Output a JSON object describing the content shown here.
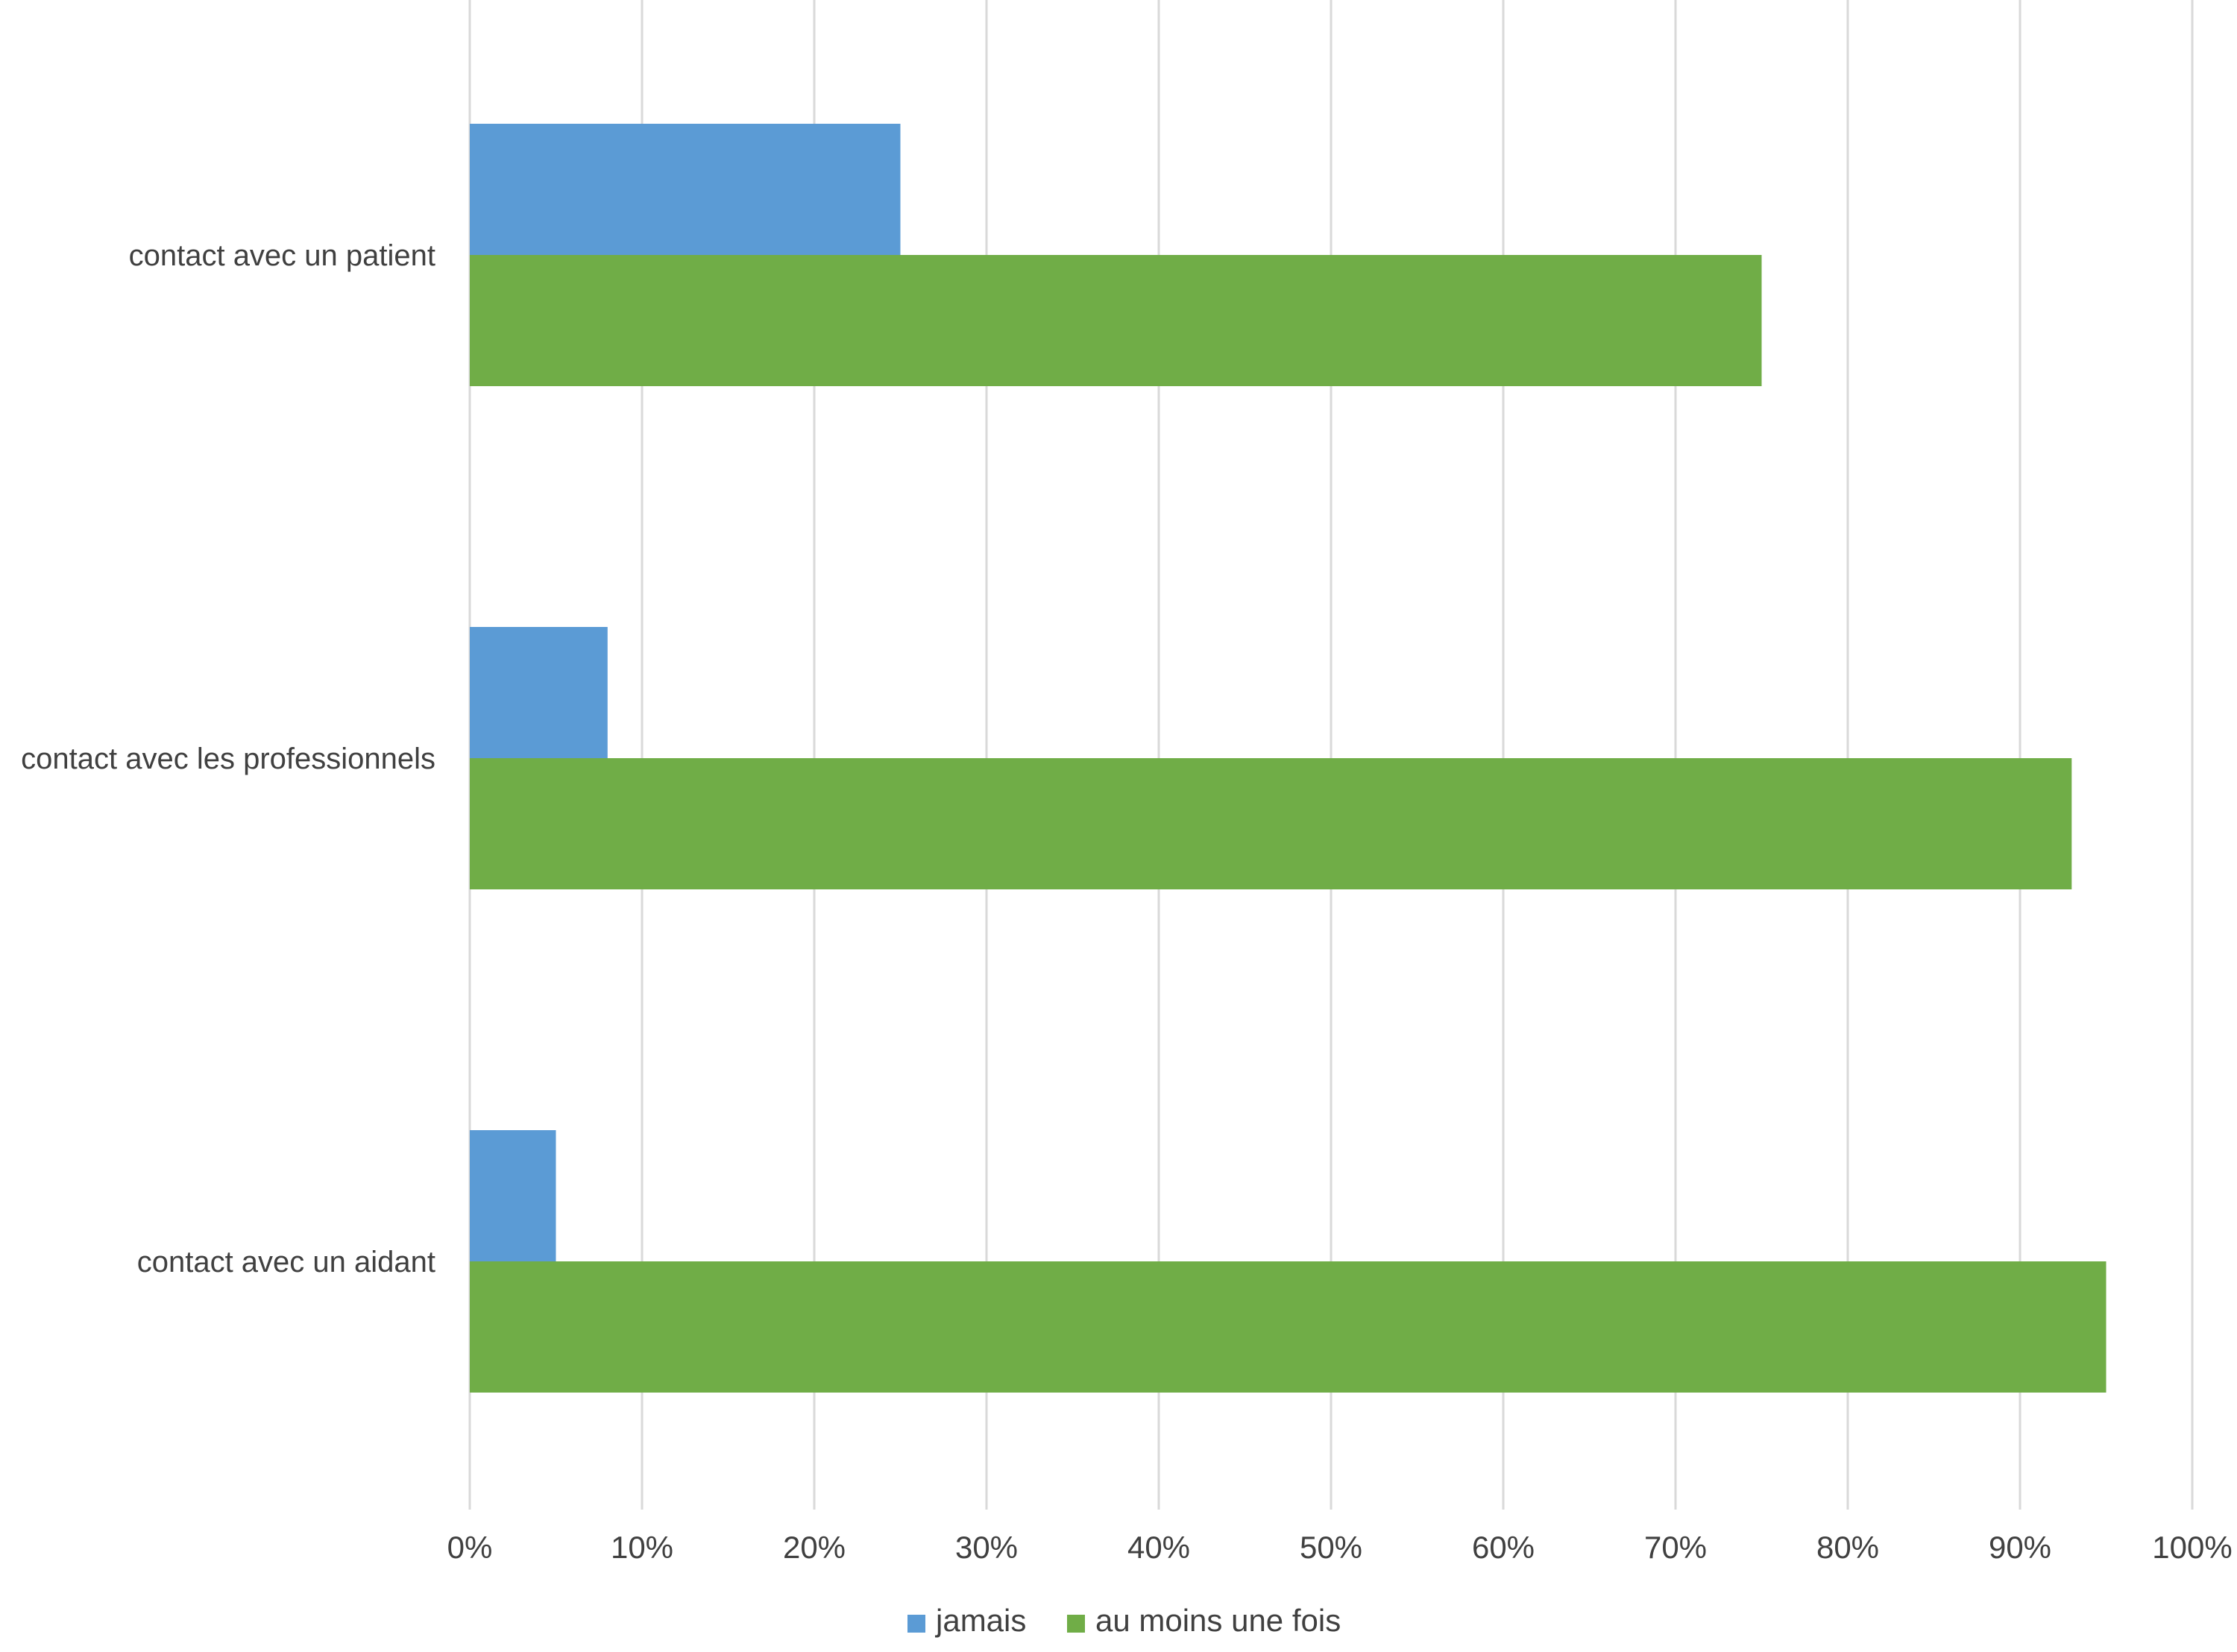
{
  "chart_data": {
    "type": "bar",
    "orientation": "horizontal",
    "title": "",
    "xlabel": "",
    "ylabel": "",
    "xlim": [
      0,
      100
    ],
    "x_ticks": [
      "0%",
      "10%",
      "20%",
      "30%",
      "40%",
      "50%",
      "60%",
      "70%",
      "80%",
      "90%",
      "100%"
    ],
    "grid": true,
    "legend_position": "bottom",
    "categories": [
      "contact avec un patient",
      "contact avec les professionnels",
      "contact avec un aidant"
    ],
    "series": [
      {
        "name": "jamais",
        "color": "#5b9bd5",
        "values": [
          25,
          8,
          5
        ]
      },
      {
        "name": "au moins une fois",
        "color": "#70ad47",
        "values": [
          75,
          93,
          95
        ]
      }
    ]
  }
}
